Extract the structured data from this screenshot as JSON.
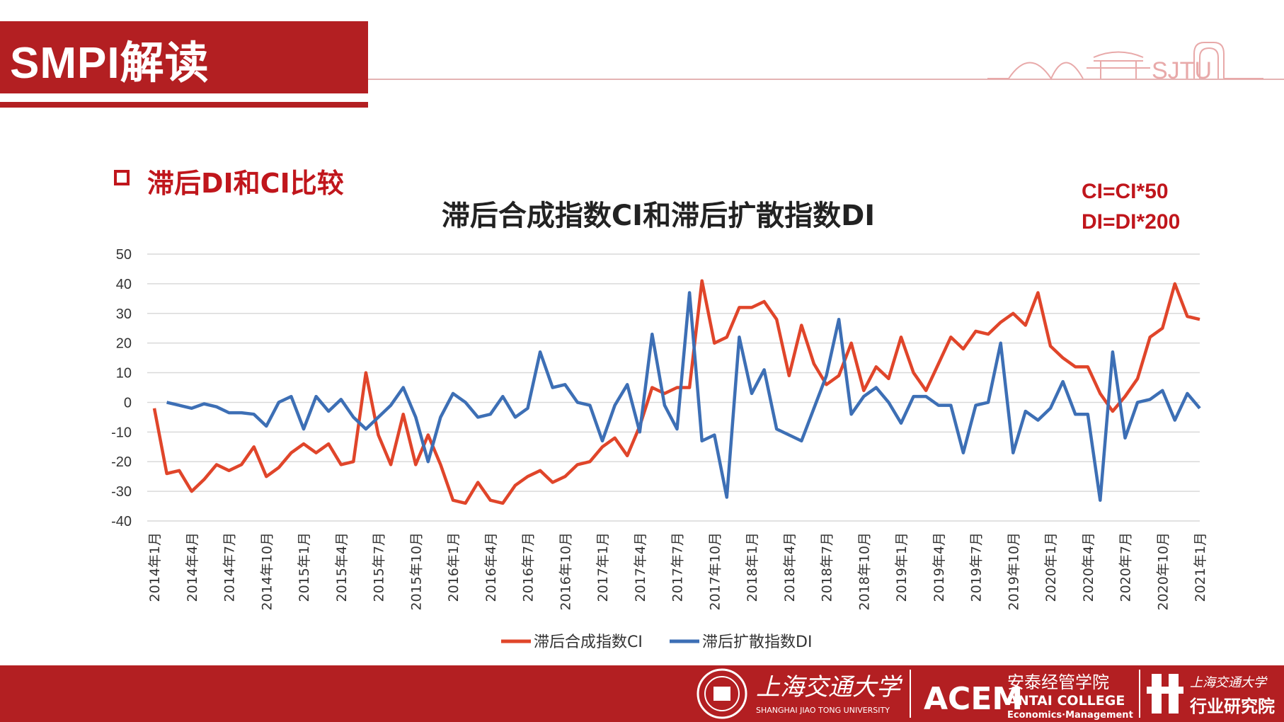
{
  "header": {
    "title": "SMPI解读"
  },
  "section": {
    "title": "滞后DI和CI比较"
  },
  "notes": {
    "ci": "CI=CI*50",
    "di": "DI=DI*200"
  },
  "logos": {
    "top_text": "SJTU",
    "footer": {
      "university_cn": "上海交通大学",
      "university_en": "SHANGHAI JIAO TONG UNIVERSITY",
      "acem_mark": "ACEM",
      "college_cn": "安泰经管学院",
      "college_en": "ANTAI COLLEGE",
      "college_sub": "Economics·Management",
      "institute_cn_1": "上海交通大学",
      "institute_cn_2": "行业研究院"
    }
  },
  "chart_data": {
    "type": "line",
    "title": "滞后合成指数CI和滞后扩散指数DI",
    "ylim": [
      -40,
      50
    ],
    "yticks": [
      50,
      40,
      30,
      20,
      10,
      0,
      -10,
      -20,
      -30,
      -40
    ],
    "grid": true,
    "legend_position": "bottom",
    "x_tick_labels": [
      "2014年1月",
      "2014年4月",
      "2014年7月",
      "2014年10月",
      "2015年1月",
      "2015年4月",
      "2015年7月",
      "2015年10月",
      "2016年1月",
      "2016年4月",
      "2016年7月",
      "2016年10月",
      "2017年1月",
      "2017年4月",
      "2017年7月",
      "2017年10月",
      "2018年1月",
      "2018年4月",
      "2018年7月",
      "2018年10月",
      "2019年1月",
      "2019年4月",
      "2019年7月",
      "2019年10月",
      "2020年1月",
      "2020年4月",
      "2020年7月",
      "2020年10月",
      "2021年1月"
    ],
    "series": [
      {
        "name": "滞后合成指数CI",
        "color": "#e0452a",
        "values": [
          -2,
          -24,
          -23,
          -30,
          -26,
          -21,
          -23,
          -21,
          -15,
          -25,
          -22,
          -17,
          -14,
          -17,
          -14,
          -21,
          -20,
          10,
          -11,
          -21,
          -4,
          -21,
          -11,
          -21,
          -33,
          -34,
          -27,
          -33,
          -34,
          -28,
          -25,
          -23,
          -27,
          -25,
          -21,
          -20,
          -15,
          -12,
          -18,
          -8,
          5,
          3,
          5,
          5,
          41,
          20,
          22,
          32,
          32,
          34,
          28,
          9,
          26,
          13,
          6,
          9,
          20,
          4,
          12,
          8,
          22,
          10,
          4,
          13,
          22,
          18,
          24,
          23,
          27,
          30,
          26,
          37,
          19,
          15,
          12,
          12,
          3,
          -3,
          2,
          8,
          22,
          25,
          40,
          29,
          28
        ]
      },
      {
        "name": "滞后扩散指数DI",
        "color": "#3d6fb5",
        "values": [
          null,
          0,
          -1,
          -2,
          -0.5,
          -1.5,
          -3.5,
          -3.5,
          -4,
          -8,
          0,
          2,
          -9,
          2,
          -3,
          1,
          -5,
          -9,
          -5,
          -1,
          5,
          -5,
          -20,
          -5,
          3,
          0,
          -5,
          -4,
          2,
          -5,
          -2,
          17,
          5,
          6,
          0,
          -1,
          -13,
          -1,
          6,
          -10,
          23,
          -1,
          -9,
          37,
          -13,
          -11,
          -32,
          22,
          3,
          11,
          -9,
          -11,
          -13,
          -2,
          9,
          28,
          -4,
          2,
          5,
          0,
          -7,
          2,
          2,
          -1,
          -1,
          -17,
          -1,
          0,
          20,
          -17,
          -3,
          -6,
          -2,
          7,
          -4,
          -4,
          -33,
          17,
          -12,
          0,
          1,
          4,
          -6,
          3,
          -2
        ]
      }
    ]
  }
}
